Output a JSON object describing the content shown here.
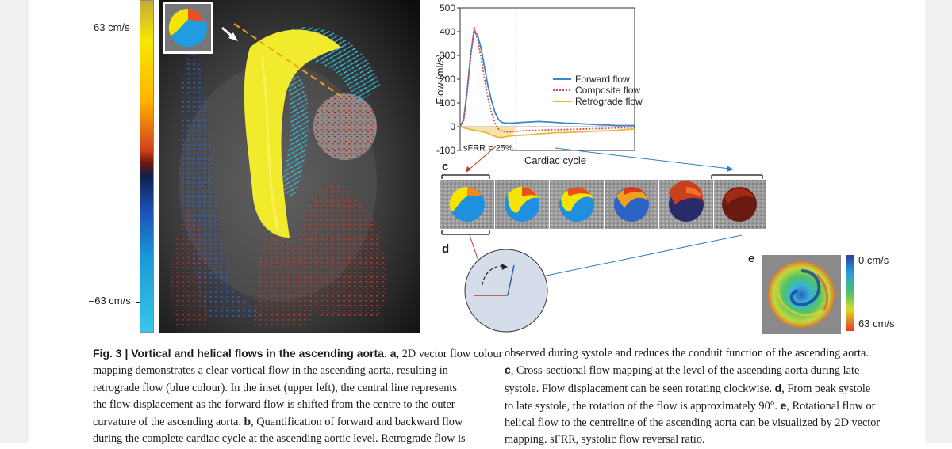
{
  "colorbar_a": {
    "top_label": "63 cm/s",
    "bottom_label": "–63 cm/s"
  },
  "panel_labels": {
    "c": "c",
    "d": "d",
    "e": "e"
  },
  "colorbar_e": {
    "top_label": "0 cm/s",
    "bottom_label": "63 cm/s"
  },
  "chart_data": {
    "type": "line",
    "xlabel": "Cardiac cycle",
    "ylabel": "Flow (ml/s)",
    "yticks": [
      500,
      400,
      300,
      200,
      100,
      0,
      -100
    ],
    "ylim": [
      -100,
      500
    ],
    "x": [
      0,
      2,
      4,
      6,
      8,
      10,
      12,
      14,
      16,
      18,
      20,
      22,
      24,
      26,
      28,
      30,
      35,
      40,
      45,
      50,
      55,
      60,
      65,
      70,
      75,
      80,
      85,
      90,
      95,
      100
    ],
    "series": [
      {
        "name": "Forward flow",
        "color": "#3a86c8",
        "dash": "solid",
        "values": [
          0,
          30,
          150,
          300,
          400,
          385,
          330,
          250,
          170,
          110,
          60,
          30,
          18,
          15,
          15,
          15,
          18,
          20,
          22,
          20,
          18,
          15,
          14,
          12,
          10,
          8,
          7,
          5,
          5,
          5
        ]
      },
      {
        "name": "Composite flow",
        "color": "#d84a4a",
        "dash": "dotted",
        "values": [
          0,
          25,
          140,
          290,
          420,
          365,
          290,
          200,
          120,
          60,
          15,
          -10,
          -18,
          -22,
          -22,
          -20,
          -18,
          -16,
          -15,
          -14,
          -13,
          -12,
          -11,
          -10,
          -9,
          -8,
          -7,
          -5,
          -5,
          -5
        ]
      },
      {
        "name": "Retrograde flow",
        "color": "#e8b73a",
        "dash": "solid",
        "values": [
          0,
          -5,
          -8,
          -12,
          -15,
          -18,
          -20,
          -23,
          -28,
          -35,
          -40,
          -45,
          -45,
          -43,
          -40,
          -38,
          -36,
          -34,
          -30,
          -28,
          -25,
          -25,
          -23,
          -22,
          -20,
          -18,
          -17,
          -15,
          -12,
          -10
        ]
      }
    ],
    "systole_divider_x": 32,
    "annotation": "sFRR = 25%",
    "legend_position": "right"
  },
  "caption": {
    "left_lines": [
      [
        {
          "b": "Fig. 3 | Vortical and helical flows in the ascending aorta."
        },
        {
          "b": " a"
        },
        {
          "t": ", 2D vector flow colour"
        }
      ],
      [
        {
          "t": "mapping demonstrates a clear vortical flow in the ascending aorta, resulting in"
        }
      ],
      [
        {
          "t": "retrograde flow (blue colour). In the inset (upper left), the central line represents"
        }
      ],
      [
        {
          "t": "the flow displacement as the forward flow is shifted from the centre to the outer"
        }
      ],
      [
        {
          "t": "curvature of the ascending aorta. "
        },
        {
          "b": "b"
        },
        {
          "t": ", Quantification of forward and backward flow"
        }
      ],
      [
        {
          "t": "during the complete cardiac cycle at the ascending aortic level. Retrograde flow is"
        }
      ]
    ],
    "right_lines": [
      [
        {
          "t": "observed during systole and reduces the conduit function of the ascending aorta."
        }
      ],
      [
        {
          "b": "c"
        },
        {
          "t": ", Cross-sectional flow mapping at the level of the ascending aorta during late"
        }
      ],
      [
        {
          "t": "systole. Flow displacement can be seen rotating clockwise. "
        },
        {
          "b": "d"
        },
        {
          "t": ", From peak systole"
        }
      ],
      [
        {
          "t": "to late systole, the rotation of the flow is approximately 90°. "
        },
        {
          "b": "e"
        },
        {
          "t": ", Rotational flow or"
        }
      ],
      [
        {
          "t": "helical flow to the centreline of the ascending aorta can be visualized by 2D vector"
        }
      ],
      [
        {
          "t": "mapping. sFRR, systolic flow reversal ratio."
        }
      ]
    ]
  }
}
